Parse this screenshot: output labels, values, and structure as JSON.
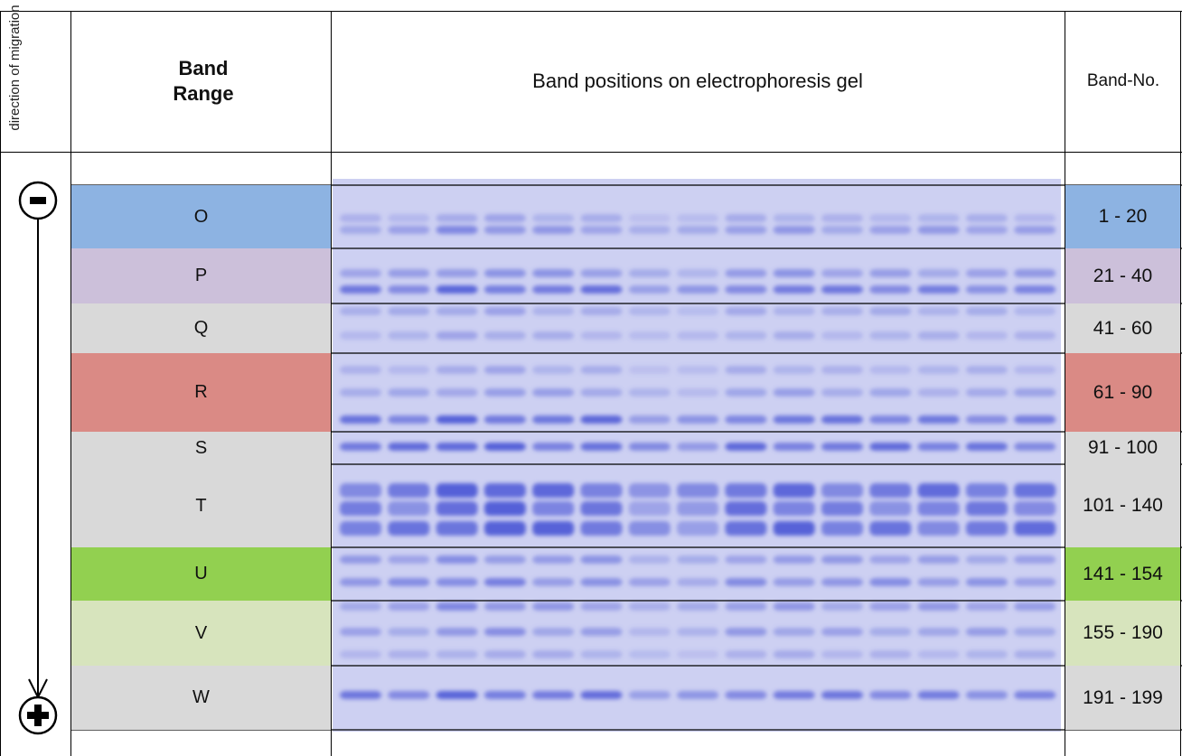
{
  "header": {
    "direction": "direction of migration",
    "band_range": "Band Range",
    "gel": "Band positions on electrophoresis gel",
    "band_no": "Band-No."
  },
  "rows": [
    {
      "range": "O",
      "band_no": "1 - 20",
      "color": "#8db3e2"
    },
    {
      "range": "P",
      "band_no": "21 - 40",
      "color": "#ccc0da"
    },
    {
      "range": "Q",
      "band_no": "41 - 60",
      "color": "#d9d9d9"
    },
    {
      "range": "R",
      "band_no": "61 - 90",
      "color": "#da8a85"
    },
    {
      "range": "S",
      "band_no": "91 - 100",
      "color": "#d9d9d9"
    },
    {
      "range": "T",
      "band_no": "101 - 140",
      "color": "#d9d9d9"
    },
    {
      "range": "U",
      "band_no": "141 - 154",
      "color": "#92d050"
    },
    {
      "range": "V",
      "band_no": "155 - 190",
      "color": "#d7e4bd"
    },
    {
      "range": "W",
      "band_no": "191 - 199",
      "color": "#d9d9d9"
    }
  ]
}
